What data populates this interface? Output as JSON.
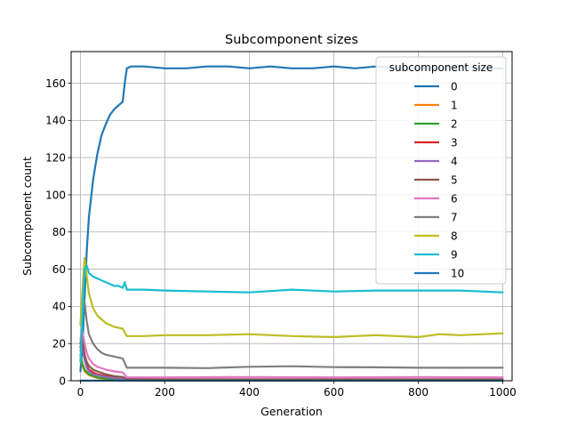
{
  "chart_data": {
    "type": "line",
    "title": "Subcomponent sizes",
    "xlabel": "Generation",
    "ylabel": "Subcomponent count",
    "xlim": [
      -22,
      1022
    ],
    "ylim": [
      0,
      177
    ],
    "xticks": [
      0,
      200,
      400,
      600,
      800,
      1000
    ],
    "yticks": [
      0,
      20,
      40,
      60,
      80,
      100,
      120,
      140,
      160
    ],
    "grid": true,
    "legend": {
      "title": "subcomponent size",
      "placement": "top-right"
    },
    "series": [
      {
        "name": "0",
        "color": "#1f77b4",
        "x": [
          0,
          5,
          10,
          15,
          20,
          30,
          40,
          50,
          60,
          70,
          80,
          90,
          100,
          105,
          110,
          120,
          150,
          200,
          250,
          300,
          350,
          400,
          450,
          500,
          550,
          600,
          650,
          700,
          750,
          800,
          850,
          900,
          950,
          1000
        ],
        "y": [
          5,
          20,
          45,
          70,
          88,
          108,
          122,
          132,
          138,
          143,
          146,
          148,
          150,
          160,
          168,
          169,
          169,
          168,
          168,
          169,
          169,
          168,
          169,
          168,
          168,
          169,
          168,
          169,
          168,
          168,
          168,
          169,
          168,
          168
        ]
      },
      {
        "name": "1",
        "color": "#ff7f0e",
        "x": [
          0,
          5,
          10,
          20,
          40,
          60,
          80,
          100,
          110,
          200,
          400,
          600,
          800,
          1000
        ],
        "y": [
          12,
          8,
          5,
          3,
          1.5,
          1,
          0.7,
          0.5,
          0.3,
          0.2,
          0.2,
          0.2,
          0.2,
          0.2
        ]
      },
      {
        "name": "2",
        "color": "#2ca02c",
        "x": [
          0,
          5,
          10,
          20,
          40,
          60,
          80,
          100,
          110,
          200,
          400,
          600,
          800,
          1000
        ],
        "y": [
          14,
          9,
          6,
          3.5,
          1.8,
          1.2,
          0.9,
          0.6,
          0.3,
          0.2,
          0.2,
          0.2,
          0.2,
          0.2
        ]
      },
      {
        "name": "3",
        "color": "#d62728",
        "x": [
          0,
          3,
          6,
          10,
          15,
          20,
          30,
          40,
          60,
          80,
          100,
          110,
          200,
          400,
          600,
          800,
          1000
        ],
        "y": [
          18,
          22,
          18,
          12,
          8,
          6,
          4.5,
          3.5,
          2.5,
          2,
          1.5,
          0.5,
          0.3,
          0.3,
          0.3,
          0.3,
          0.3
        ]
      },
      {
        "name": "4",
        "color": "#9467bd",
        "x": [
          0,
          3,
          6,
          10,
          15,
          20,
          30,
          40,
          60,
          80,
          100,
          110,
          200,
          400,
          600,
          800,
          1000
        ],
        "y": [
          16,
          20,
          16,
          11,
          7,
          5,
          3.5,
          3,
          2,
          1.5,
          1.2,
          0.5,
          0.4,
          0.4,
          0.4,
          0.4,
          0.4
        ]
      },
      {
        "name": "5",
        "color": "#8c564b",
        "x": [
          0,
          3,
          6,
          10,
          15,
          20,
          30,
          40,
          60,
          80,
          100,
          110,
          200,
          400,
          600,
          800,
          1000
        ],
        "y": [
          20,
          24,
          20,
          14,
          10,
          8,
          6,
          5,
          3.5,
          2.5,
          2,
          1,
          0.8,
          0.8,
          0.8,
          0.8,
          0.8
        ]
      },
      {
        "name": "6",
        "color": "#e377c2",
        "x": [
          0,
          3,
          6,
          10,
          15,
          20,
          30,
          40,
          60,
          80,
          100,
          110,
          200,
          400,
          600,
          800,
          1000
        ],
        "y": [
          22,
          27,
          25,
          20,
          15,
          12,
          9,
          7.5,
          6,
          5,
          4.5,
          1.8,
          1.8,
          2,
          1.8,
          2,
          1.8
        ]
      },
      {
        "name": "7",
        "color": "#7f7f7f",
        "x": [
          0,
          5,
          10,
          15,
          20,
          30,
          40,
          50,
          60,
          70,
          80,
          90,
          100,
          110,
          200,
          300,
          400,
          500,
          600,
          700,
          800,
          900,
          1000
        ],
        "y": [
          30,
          45,
          42,
          32,
          25,
          20,
          17,
          15,
          14,
          13.5,
          13,
          12.5,
          12,
          7,
          7,
          6.8,
          7.5,
          7.8,
          7.3,
          7.2,
          7,
          7,
          7
        ]
      },
      {
        "name": "8",
        "color": "#bcbd22",
        "x": [
          0,
          5,
          10,
          15,
          20,
          30,
          40,
          50,
          60,
          70,
          80,
          90,
          100,
          110,
          150,
          200,
          300,
          400,
          500,
          600,
          700,
          800,
          850,
          900,
          1000
        ],
        "y": [
          30,
          50,
          66,
          56,
          47,
          39,
          35,
          33,
          31,
          30,
          29,
          28.5,
          28,
          24,
          24,
          24.5,
          24.5,
          25,
          24,
          23.5,
          24.5,
          23.5,
          25,
          24.5,
          25.5
        ]
      },
      {
        "name": "9",
        "color": "#17becf",
        "x": [
          0,
          5,
          10,
          15,
          20,
          30,
          40,
          50,
          60,
          70,
          80,
          90,
          100,
          105,
          110,
          150,
          200,
          300,
          400,
          500,
          600,
          700,
          800,
          900,
          1000
        ],
        "y": [
          10,
          35,
          60,
          62,
          58,
          56,
          55,
          54,
          53,
          52,
          51,
          51,
          50,
          53,
          49,
          49,
          48.5,
          48,
          47.5,
          49,
          48,
          48.5,
          48.5,
          48.5,
          47.5
        ]
      },
      {
        "name": "10",
        "color": "#1f77b4",
        "x": [
          0,
          1000
        ],
        "y": [
          0.1,
          0.1
        ]
      }
    ]
  }
}
